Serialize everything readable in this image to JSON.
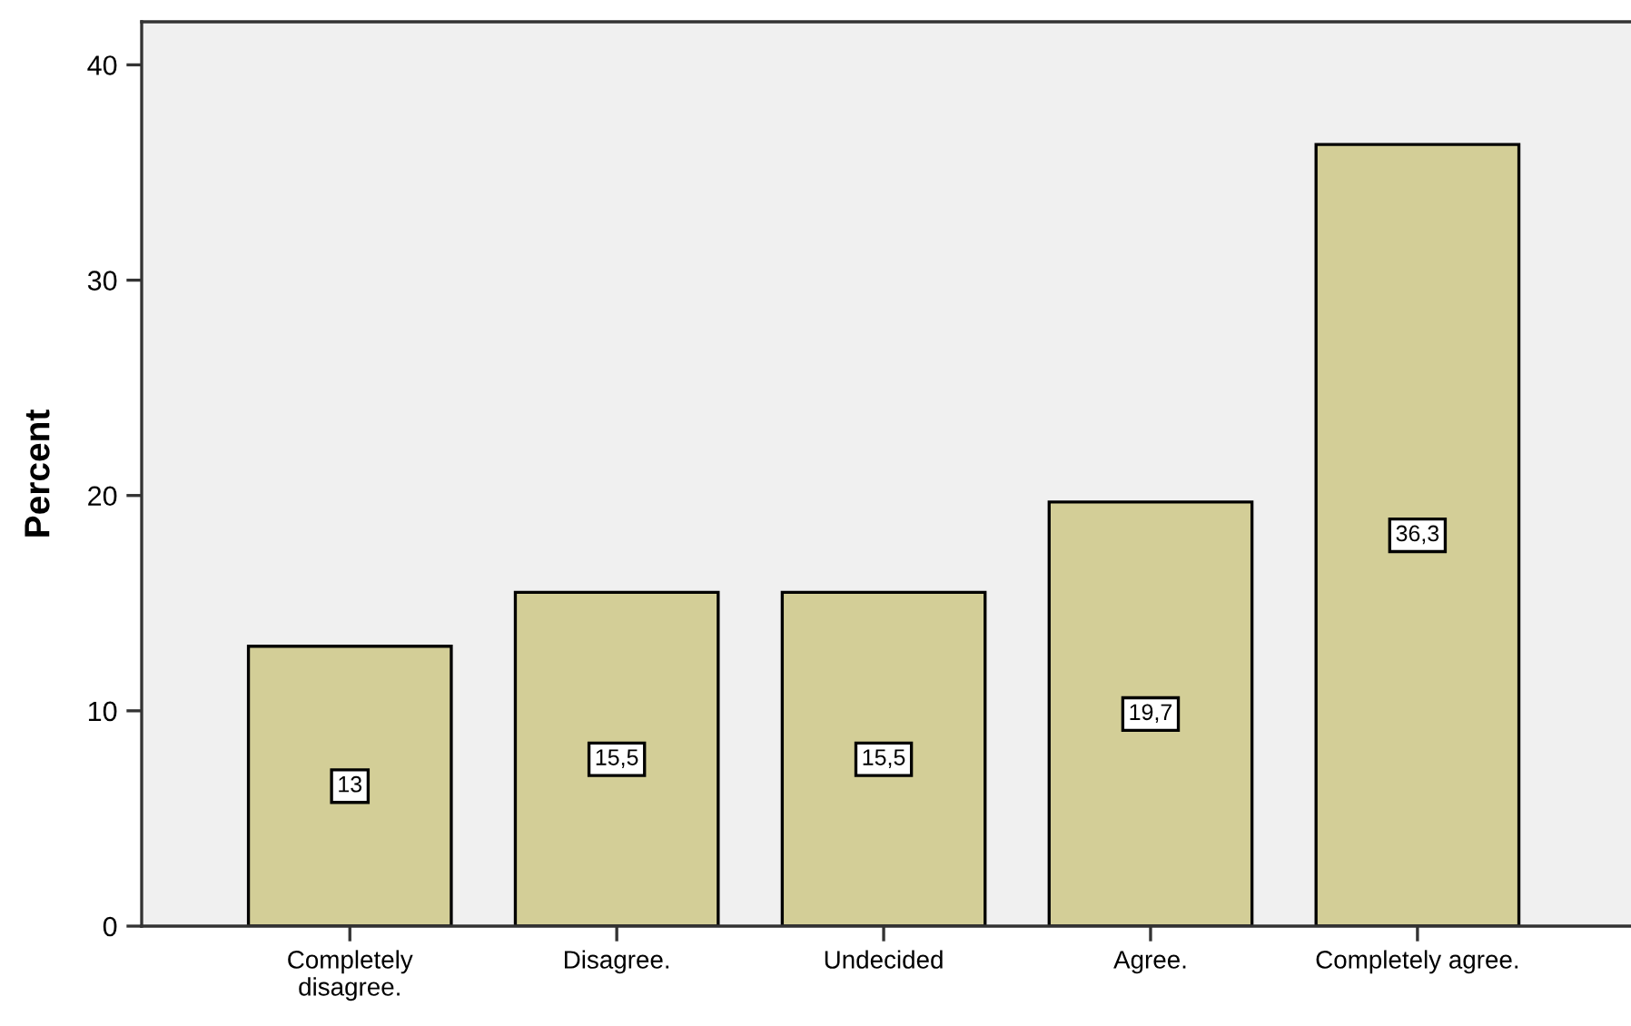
{
  "chart_data": {
    "type": "bar",
    "ylabel": "Percent",
    "categories": [
      "Completely\ndisagree.",
      "Disagree.",
      "Undecided",
      "Agree.",
      "Completely agree."
    ],
    "values": [
      13,
      15.5,
      15.5,
      19.7,
      36.3
    ],
    "value_labels": [
      "13",
      "15,5",
      "15,5",
      "19,7",
      "36,3"
    ],
    "color": "#d3ce97",
    "ylim": [
      0,
      42
    ],
    "yticks": [
      0,
      10,
      20,
      30,
      40
    ],
    "grid": false,
    "legend": false
  }
}
